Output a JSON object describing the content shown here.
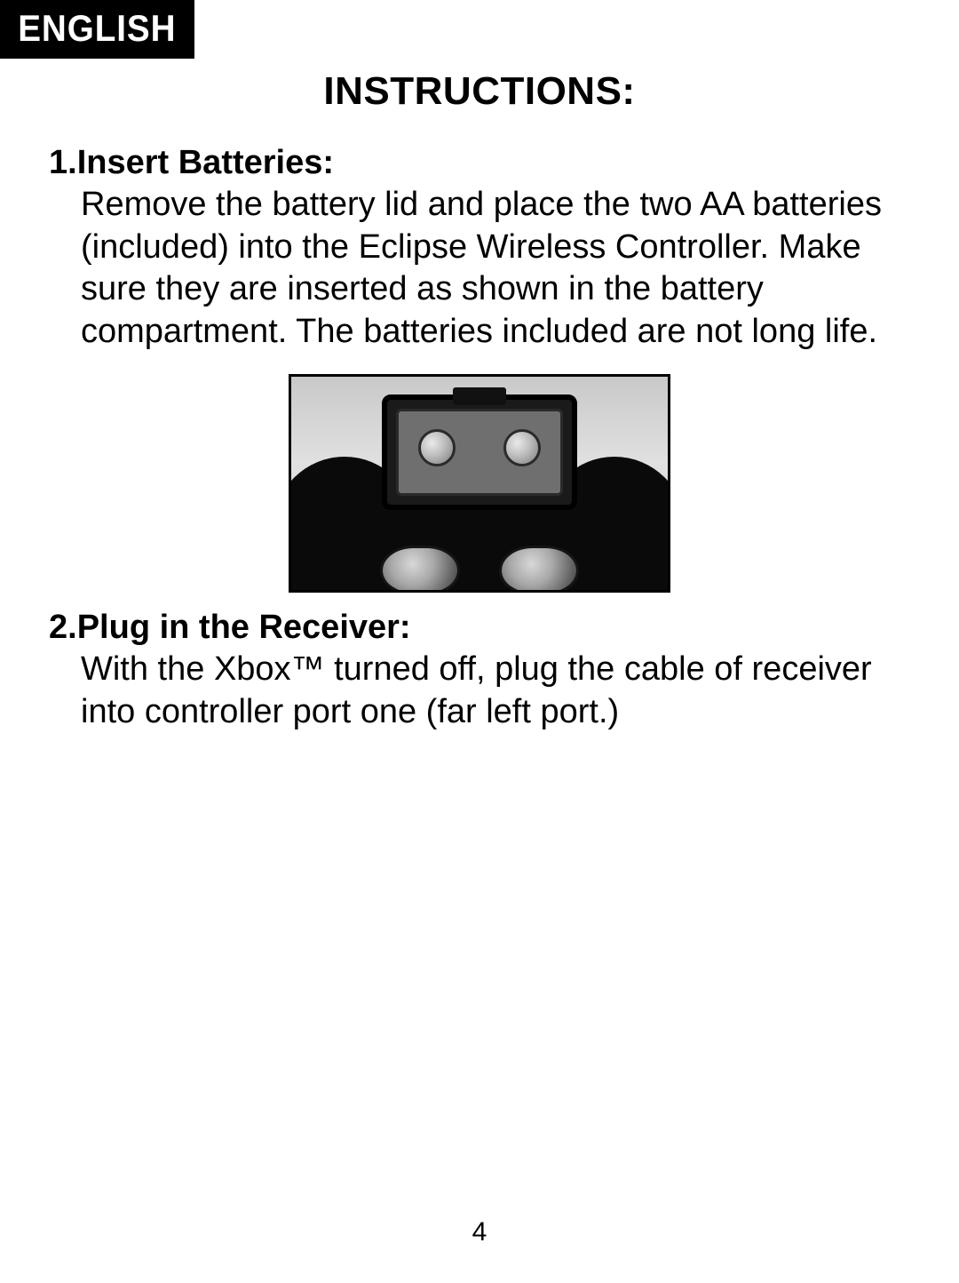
{
  "language_tab": "ENGLISH",
  "title": "INSTRUCTIONS:",
  "steps": [
    {
      "number": "1.",
      "heading": "Insert Batteries:",
      "body": "Remove the battery lid and place the two AA batteries (included) into the Eclipse Wireless Controller.  Make sure they are inserted as shown in the battery compartment.  The batteries included are not long life."
    },
    {
      "number": "2.",
      "heading": "Plug in the Receiver:",
      "body": "With the Xbox™ turned off, plug the cable of receiver into controller port one (far left port.)"
    }
  ],
  "page_number": "4",
  "colors": {
    "page_bg": "#ffffff",
    "text": "#000000",
    "tab_bg": "#000000",
    "tab_text": "#ffffff",
    "figure_border": "#000000"
  }
}
